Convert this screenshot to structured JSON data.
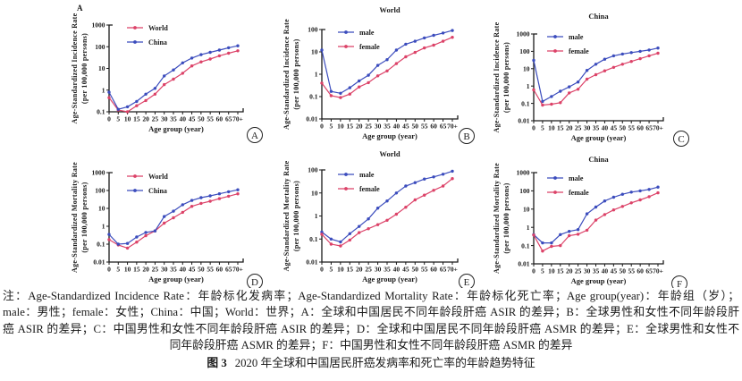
{
  "figure": {
    "corner_label": "A",
    "xlabel": "Age group (year)",
    "x_tick_labels": [
      "0",
      "5",
      "10",
      "15",
      "20",
      "25",
      "30",
      "35",
      "40",
      "45",
      "50",
      "55",
      "60",
      "65",
      "70+"
    ],
    "palette": {
      "red": "#dc4268",
      "blue": "#3b4cbd",
      "axis": "#1a1a1a"
    }
  },
  "chart_data": [
    {
      "type": "line",
      "panel": "A",
      "title": "",
      "ylabel": "Age-Standardized Incidence Rate",
      "ylabel2": "(per 100,000 persons)",
      "xlabel": "Age group (year)",
      "ylog": true,
      "ylim": [
        0.1,
        1000
      ],
      "y_ticks": [
        "1000",
        "100",
        "10",
        "1",
        "0.1"
      ],
      "categories": [
        "0",
        "5",
        "10",
        "15",
        "20",
        "25",
        "30",
        "35",
        "40",
        "45",
        "50",
        "55",
        "60",
        "65",
        "70+"
      ],
      "series": [
        {
          "name": "World",
          "color": "red",
          "values": [
            0.45,
            0.12,
            0.1,
            0.19,
            0.33,
            0.65,
            1.8,
            3.2,
            6,
            13,
            20,
            27,
            38,
            50,
            65
          ]
        },
        {
          "name": "China",
          "color": "blue",
          "values": [
            0.8,
            0.13,
            0.17,
            0.3,
            0.65,
            1.2,
            4.5,
            8.5,
            18,
            30,
            43,
            55,
            70,
            90,
            110
          ]
        }
      ]
    },
    {
      "type": "line",
      "panel": "B",
      "title": "World",
      "ylabel": "Age-Standardized Incidence Rate",
      "ylabel2": "(per 100,000 persons)",
      "xlabel": "Age group (year)",
      "ylog": true,
      "ylim": [
        0.01,
        100
      ],
      "y_ticks": [
        "100",
        "10",
        "1",
        "0.1",
        "0.01"
      ],
      "categories": [
        "0",
        "5",
        "10",
        "15",
        "20",
        "25",
        "30",
        "35",
        "40",
        "45",
        "50",
        "55",
        "60",
        "65",
        "70+"
      ],
      "series": [
        {
          "name": "male",
          "color": "blue",
          "values": [
            12,
            0.17,
            0.14,
            0.25,
            0.5,
            0.9,
            2.5,
            4.5,
            12,
            22,
            30,
            42,
            55,
            70,
            90
          ]
        },
        {
          "name": "female",
          "color": "red",
          "values": [
            0.4,
            0.11,
            0.09,
            0.13,
            0.27,
            0.42,
            0.85,
            1.4,
            3,
            6,
            9.5,
            15,
            20,
            30,
            45
          ]
        }
      ]
    },
    {
      "type": "line",
      "panel": "C",
      "title": "China",
      "ylabel": "Age-Standardized Incidence Rate",
      "ylabel2": "(per 100,000 persons)",
      "xlabel": "Age group (year)",
      "ylog": true,
      "ylim": [
        0.01,
        1000
      ],
      "y_ticks": [
        "1000",
        "100",
        "10",
        "1",
        "0.1",
        "0.01"
      ],
      "categories": [
        "0",
        "5",
        "10",
        "15",
        "20",
        "25",
        "30",
        "35",
        "40",
        "45",
        "50",
        "55",
        "60",
        "65",
        "70+"
      ],
      "series": [
        {
          "name": "male",
          "color": "blue",
          "values": [
            30,
            0.13,
            0.25,
            0.5,
            0.9,
            1.7,
            8,
            18,
            35,
            55,
            70,
            85,
            100,
            120,
            155
          ]
        },
        {
          "name": "female",
          "color": "red",
          "values": [
            0.6,
            0.08,
            0.09,
            0.11,
            0.4,
            0.65,
            2.5,
            4.5,
            7.5,
            12,
            18,
            26,
            38,
            55,
            78
          ]
        }
      ]
    },
    {
      "type": "line",
      "panel": "D",
      "title": "",
      "ylabel": "Age-Standardized Mortality Rate",
      "ylabel2": "(per 100,000 persons)",
      "xlabel": "Age group (year)",
      "ylog": true,
      "ylim": [
        0.01,
        1000
      ],
      "y_ticks": [
        "1000",
        "100",
        "10",
        "1",
        "0.1",
        "0.01"
      ],
      "categories": [
        "0",
        "5",
        "10",
        "15",
        "20",
        "25",
        "30",
        "35",
        "40",
        "45",
        "50",
        "55",
        "60",
        "65",
        "70+"
      ],
      "series": [
        {
          "name": "World",
          "color": "red",
          "values": [
            0.18,
            0.09,
            0.06,
            0.13,
            0.3,
            0.55,
            1.5,
            3,
            6,
            13,
            19,
            25,
            35,
            48,
            65
          ]
        },
        {
          "name": "China",
          "color": "blue",
          "values": [
            0.35,
            0.1,
            0.11,
            0.25,
            0.45,
            0.55,
            3.5,
            7,
            16,
            28,
            40,
            50,
            65,
            85,
            110
          ]
        }
      ]
    },
    {
      "type": "line",
      "panel": "E",
      "title": "World",
      "ylabel": "Age-Standardized Mortality Rate",
      "ylabel2": "(per 100,000 persons)",
      "xlabel": "Age group (year)",
      "ylog": true,
      "ylim": [
        0.01,
        100
      ],
      "y_ticks": [
        "100",
        "10",
        "1",
        "0.1",
        "0.01"
      ],
      "categories": [
        "0",
        "5",
        "10",
        "15",
        "20",
        "25",
        "30",
        "35",
        "40",
        "45",
        "50",
        "55",
        "60",
        "65",
        "70+"
      ],
      "series": [
        {
          "name": "male",
          "color": "blue",
          "values": [
            0.2,
            0.1,
            0.075,
            0.17,
            0.35,
            0.75,
            2.2,
            4.5,
            10,
            20,
            28,
            40,
            50,
            65,
            88
          ]
        },
        {
          "name": "female",
          "color": "red",
          "values": [
            0.16,
            0.06,
            0.05,
            0.09,
            0.19,
            0.28,
            0.42,
            0.65,
            1.2,
            2.4,
            5,
            8,
            13,
            20,
            42
          ]
        }
      ]
    },
    {
      "type": "line",
      "panel": "F",
      "title": "China",
      "ylabel": "Age-Standardized Mortality Rate",
      "ylabel2": "(per 100,000 persons)",
      "xlabel": "Age group (year)",
      "ylog": true,
      "ylim": [
        0.01,
        1000
      ],
      "y_ticks": [
        "1000",
        "100",
        "10",
        "1",
        "0.1",
        "0.01"
      ],
      "categories": [
        "0",
        "5",
        "10",
        "15",
        "20",
        "25",
        "30",
        "35",
        "40",
        "45",
        "50",
        "55",
        "60",
        "65",
        "70+"
      ],
      "series": [
        {
          "name": "male",
          "color": "blue",
          "values": [
            0.4,
            0.14,
            0.14,
            0.4,
            0.6,
            0.75,
            5.5,
            13,
            28,
            45,
            65,
            85,
            100,
            120,
            160
          ]
        },
        {
          "name": "female",
          "color": "red",
          "values": [
            0.38,
            0.05,
            0.09,
            0.1,
            0.35,
            0.42,
            0.7,
            2.5,
            5,
            9,
            14,
            22,
            32,
            48,
            78
          ]
        }
      ]
    }
  ],
  "caption": {
    "lines": [
      "注：Age-Standardized Incidence Rate：年龄标化发病率；Age-Standardized Mortality Rate：年龄标化死亡率；Age group(year)：年龄组（岁）；",
      "male：男性；female：女性；China：中国；World：世界；A：全球和中国居民不同年龄段肝癌 ASIR 的差异；B：全球男性和女性不同年龄段肝",
      "癌 ASIR 的差异；C：中国男性和女性不同年龄段肝癌 ASIR 的差异；D：全球和中国居民不同年龄段肝癌 ASMR 的差异；E：全球男性和女性不",
      "同年龄段肝癌 ASMR 的差异；F：中国男性和女性不同年龄段肝癌 ASMR 的差异"
    ],
    "figure_label": "图 3",
    "figure_title": "2020 年全球和中国居民肝癌发病率和死亡率的年龄趋势特征"
  }
}
